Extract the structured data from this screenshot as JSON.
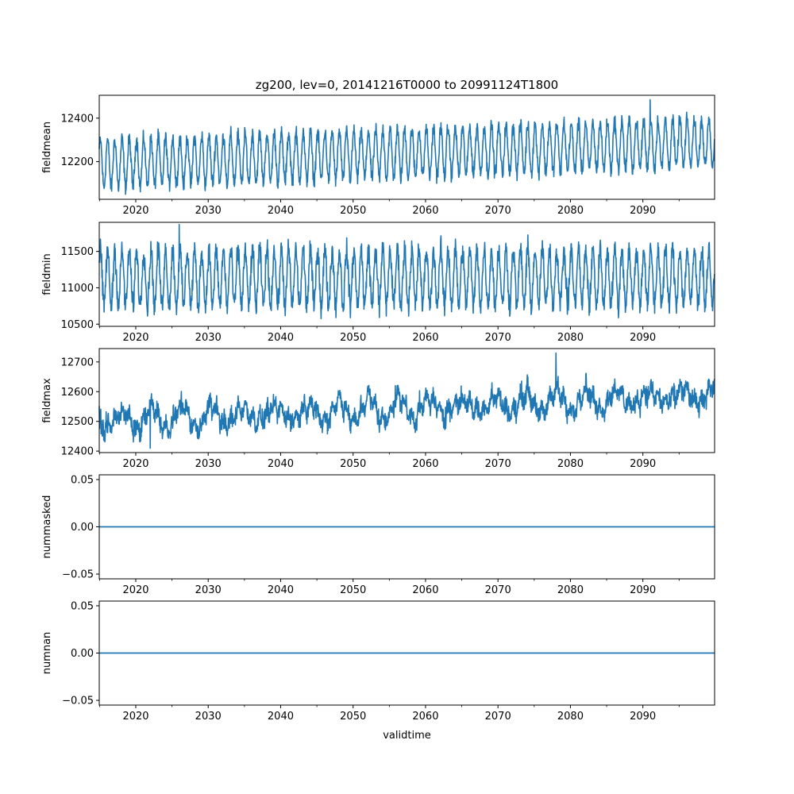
{
  "figure": {
    "title": "zg200, lev=0, 20141216T0000 to 20991124T1800",
    "xlabel": "validtime",
    "line_color": "#1f77b4"
  },
  "chart_data": [
    {
      "type": "line",
      "ylabel": "fieldmean",
      "xlim": [
        2014.96,
        2099.9
      ],
      "ylim": [
        12027,
        12505
      ],
      "x_ticks": [
        2020,
        2030,
        2040,
        2050,
        2060,
        2070,
        2080,
        2090
      ],
      "y_ticks": [
        12200,
        12400
      ],
      "summary": {
        "baseline_start": 12190,
        "baseline_end": 12290,
        "seasonal_amplitude": 110,
        "noise": 30,
        "peak": {
          "x": 2091.0,
          "y": 12485
        }
      }
    },
    {
      "type": "line",
      "ylabel": "fieldmin",
      "xlim": [
        2014.96,
        2099.9
      ],
      "ylim": [
        10470,
        11900
      ],
      "x_ticks": [
        2020,
        2030,
        2040,
        2050,
        2060,
        2070,
        2080,
        2090
      ],
      "y_ticks": [
        10500,
        11000,
        11500
      ],
      "summary": {
        "baseline_start": 11130,
        "baseline_end": 11150,
        "seasonal_amplitude": 380,
        "noise": 140,
        "peak": {
          "x": 2026.0,
          "y": 11870
        }
      }
    },
    {
      "type": "line",
      "ylabel": "fieldmax",
      "xlim": [
        2014.96,
        2099.9
      ],
      "ylim": [
        12395,
        12745
      ],
      "x_ticks": [
        2020,
        2030,
        2040,
        2050,
        2060,
        2070,
        2080,
        2090
      ],
      "y_ticks": [
        12400,
        12500,
        12600,
        12700
      ],
      "summary": {
        "baseline_start": 12500,
        "baseline_end": 12590,
        "seasonal_amplitude": 20,
        "noise": 30,
        "decadal_amplitude": 30,
        "peak": {
          "x": 2078.0,
          "y": 12730
        },
        "trough": {
          "x": 2022.0,
          "y": 12410
        }
      }
    },
    {
      "type": "line",
      "ylabel": "nummasked",
      "xlim": [
        2014.96,
        2099.9
      ],
      "ylim": [
        -0.055,
        0.055
      ],
      "x_ticks": [
        2020,
        2030,
        2040,
        2050,
        2060,
        2070,
        2080,
        2090
      ],
      "y_ticks": [
        -0.05,
        0.0,
        0.05
      ],
      "y_tick_labels": [
        "−0.05",
        "0.00",
        "0.05"
      ],
      "x": [
        2014.96,
        2099.9
      ],
      "y": [
        0,
        0
      ]
    },
    {
      "type": "line",
      "ylabel": "numnan",
      "xlim": [
        2014.96,
        2099.9
      ],
      "ylim": [
        -0.055,
        0.055
      ],
      "x_ticks": [
        2020,
        2030,
        2040,
        2050,
        2060,
        2070,
        2080,
        2090
      ],
      "y_ticks": [
        -0.05,
        0.0,
        0.05
      ],
      "y_tick_labels": [
        "−0.05",
        "0.00",
        "0.05"
      ],
      "x": [
        2014.96,
        2099.9
      ],
      "y": [
        0,
        0
      ]
    }
  ]
}
